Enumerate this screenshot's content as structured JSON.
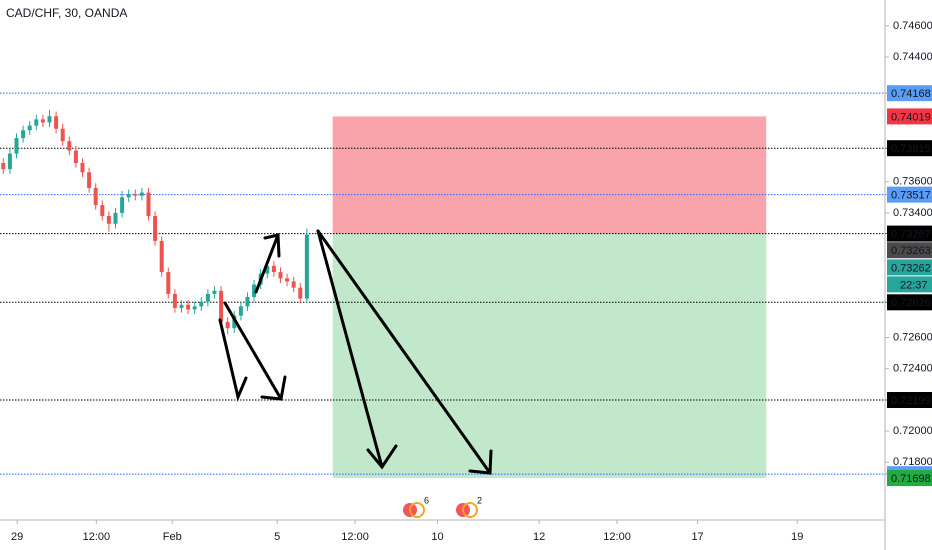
{
  "chart_data": {
    "type": "candlestick",
    "title": "CAD/CHF, 30, OANDA",
    "x": [
      0,
      1,
      2,
      3,
      4,
      5,
      6,
      7,
      8,
      9,
      10,
      11,
      12,
      13,
      14,
      15,
      16,
      17,
      18,
      19,
      20,
      21,
      22,
      23,
      24,
      25,
      26,
      27,
      28,
      29,
      30,
      31,
      32,
      33,
      34,
      35,
      36,
      37,
      38,
      39,
      40,
      41,
      42,
      43,
      44,
      45,
      46
    ],
    "open": [
      0.7372,
      0.7368,
      0.7378,
      0.7388,
      0.7393,
      0.7396,
      0.74,
      0.7398,
      0.7402,
      0.7394,
      0.7386,
      0.738,
      0.7372,
      0.7366,
      0.7356,
      0.7345,
      0.7338,
      0.7333,
      0.734,
      0.735,
      0.7352,
      0.7351,
      0.7353,
      0.7338,
      0.7322,
      0.7302,
      0.7288,
      0.7279,
      0.7281,
      0.7278,
      0.728,
      0.7283,
      0.7288,
      0.729,
      0.727,
      0.7266,
      0.7274,
      0.728,
      0.7286,
      0.7294,
      0.7301,
      0.7306,
      0.7302,
      0.7298,
      0.7296,
      0.7292,
      0.7285
    ],
    "high": [
      0.7375,
      0.7381,
      0.7391,
      0.7396,
      0.7399,
      0.7403,
      0.7403,
      0.7406,
      0.7405,
      0.7397,
      0.7389,
      0.7383,
      0.7375,
      0.7369,
      0.7359,
      0.7348,
      0.7341,
      0.7343,
      0.7354,
      0.7355,
      0.7355,
      0.7356,
      0.7356,
      0.7341,
      0.7325,
      0.7305,
      0.7291,
      0.7284,
      0.7284,
      0.7283,
      0.7286,
      0.7291,
      0.7293,
      0.7293,
      0.7273,
      0.7277,
      0.7283,
      0.7289,
      0.7297,
      0.7304,
      0.7309,
      0.7309,
      0.7305,
      0.7301,
      0.7299,
      0.7295,
      0.733
    ],
    "low": [
      0.7365,
      0.7365,
      0.7375,
      0.7385,
      0.739,
      0.7393,
      0.7395,
      0.7395,
      0.7391,
      0.7383,
      0.7377,
      0.7369,
      0.7363,
      0.7353,
      0.7342,
      0.7335,
      0.7328,
      0.733,
      0.7337,
      0.7347,
      0.7348,
      0.7348,
      0.7335,
      0.7319,
      0.7299,
      0.7285,
      0.7276,
      0.7276,
      0.7275,
      0.7275,
      0.7277,
      0.728,
      0.7285,
      0.7265,
      0.7262,
      0.7263,
      0.7271,
      0.7277,
      0.7283,
      0.7291,
      0.7298,
      0.7299,
      0.7295,
      0.7293,
      0.7289,
      0.7282,
      0.7282
    ],
    "close": [
      0.7368,
      0.7378,
      0.7388,
      0.7393,
      0.7396,
      0.74,
      0.7398,
      0.7402,
      0.7394,
      0.7386,
      0.738,
      0.7372,
      0.7366,
      0.7356,
      0.7345,
      0.7338,
      0.7333,
      0.734,
      0.735,
      0.7352,
      0.7351,
      0.7353,
      0.7338,
      0.7322,
      0.7302,
      0.7288,
      0.7279,
      0.7281,
      0.7278,
      0.728,
      0.7283,
      0.7288,
      0.729,
      0.727,
      0.7266,
      0.7274,
      0.728,
      0.7286,
      0.7294,
      0.7301,
      0.7306,
      0.7302,
      0.7298,
      0.7296,
      0.7292,
      0.7285,
      0.7326
    ],
    "up_color": "#26a69a",
    "down_color": "#ef5350",
    "xlim": [
      -0.5,
      133.6
    ],
    "xticks": [
      {
        "value": 2.1,
        "label": "29"
      },
      {
        "value": 14.1,
        "label": "12:00"
      },
      {
        "value": 25.6,
        "label": "Feb"
      },
      {
        "value": 41.5,
        "label": "5"
      },
      {
        "value": 53.3,
        "label": "12:00"
      },
      {
        "value": 65.8,
        "label": "10"
      },
      {
        "value": 81.2,
        "label": "12"
      },
      {
        "value": 93,
        "label": "12:00"
      },
      {
        "value": 105.2,
        "label": "17"
      },
      {
        "value": 120.3,
        "label": "19"
      }
    ],
    "ylim": [
      0.71429,
      0.74766
    ],
    "yticks": [
      {
        "value": 0.746,
        "label": "0.74600"
      },
      {
        "value": 0.744,
        "label": "0.74400"
      },
      {
        "value": 0.736,
        "label": "0.73600"
      },
      {
        "value": 0.734,
        "label": "0.73400"
      },
      {
        "value": 0.726,
        "label": "0.72600"
      },
      {
        "value": 0.724,
        "label": "0.72400"
      },
      {
        "value": 0.72,
        "label": "0.72000"
      },
      {
        "value": 0.718,
        "label": "0.71800"
      }
    ],
    "levels": [
      {
        "value": 0.74168,
        "color": "#2962ff"
      },
      {
        "value": 0.73815,
        "color": "#000000"
      },
      {
        "value": 0.73517,
        "color": "#2962ff"
      },
      {
        "value": 0.73267,
        "color": "#000000"
      },
      {
        "value": 0.72826,
        "color": "#000000"
      },
      {
        "value": 0.72199,
        "color": "#000000"
      },
      {
        "value": 0.71723,
        "color": "#2962ff"
      }
    ],
    "position": {
      "stop": 0.74019,
      "entry": 0.73267,
      "target": 0.71698,
      "x": [
        49.9,
        115.6
      ],
      "stop_color": "#f23645",
      "target_color": "#22ab3f"
    },
    "price_tags": [
      {
        "value": 0.73263,
        "color": "#4a4a4a"
      },
      {
        "value": 0.73262,
        "color": "#26a69a",
        "countdown": "22:37"
      }
    ],
    "events": [
      6,
      2
    ]
  }
}
